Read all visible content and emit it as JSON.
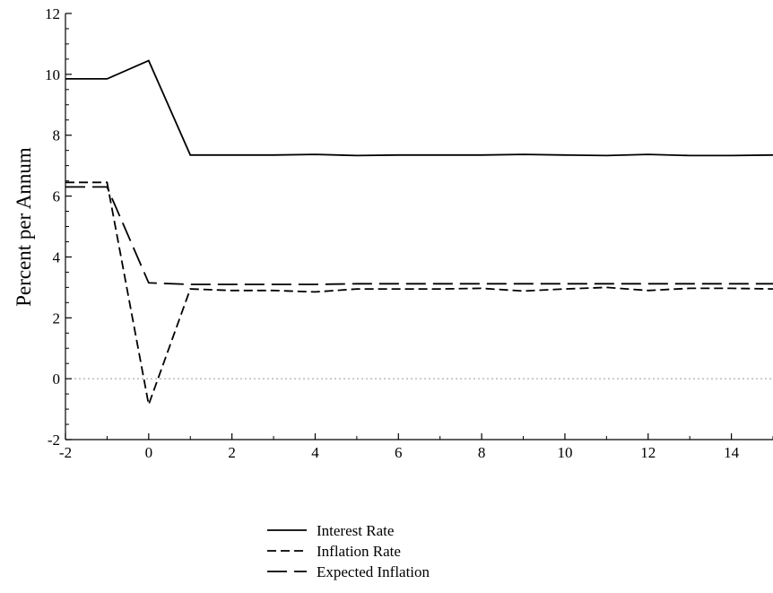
{
  "chart_data": {
    "type": "line",
    "ylabel": "Percent per Annum",
    "xlabel": "",
    "xlim": [
      -2,
      15
    ],
    "ylim": [
      -2,
      12
    ],
    "x_ticks": [
      -2,
      0,
      2,
      4,
      6,
      8,
      10,
      12,
      14
    ],
    "y_ticks": [
      -2,
      0,
      2,
      4,
      6,
      8,
      10,
      12
    ],
    "x_tick_labels": [
      "-2",
      "0",
      "2",
      "4",
      "6",
      "8",
      "10",
      "12",
      "14"
    ],
    "y_tick_labels": [
      "-2",
      "0",
      "2",
      "4",
      "6",
      "8",
      "10",
      "12"
    ],
    "zero_line": true,
    "legend_position": "bottom-center",
    "x": [
      -2,
      -1,
      0,
      1,
      2,
      3,
      4,
      5,
      6,
      7,
      8,
      9,
      10,
      11,
      12,
      13,
      14,
      15
    ],
    "series": [
      {
        "name": "Interest Rate",
        "style": "solid",
        "values": [
          9.85,
          9.85,
          10.45,
          7.35,
          7.35,
          7.35,
          7.37,
          7.33,
          7.35,
          7.35,
          7.35,
          7.37,
          7.35,
          7.33,
          7.37,
          7.33,
          7.33,
          7.35
        ]
      },
      {
        "name": "Inflation Rate",
        "style": "dashed",
        "values": [
          6.45,
          6.45,
          -0.85,
          2.95,
          2.9,
          2.9,
          2.85,
          2.95,
          2.95,
          2.95,
          2.97,
          2.88,
          2.95,
          3.0,
          2.9,
          2.97,
          2.97,
          2.95
        ]
      },
      {
        "name": "Expected Inflation",
        "style": "long-dash",
        "values": [
          6.3,
          6.3,
          3.15,
          3.1,
          3.1,
          3.1,
          3.1,
          3.12,
          3.12,
          3.12,
          3.12,
          3.12,
          3.12,
          3.12,
          3.12,
          3.12,
          3.12,
          3.12
        ]
      }
    ],
    "colors": {
      "lines": "#000000",
      "zero_line": "#999999"
    }
  }
}
